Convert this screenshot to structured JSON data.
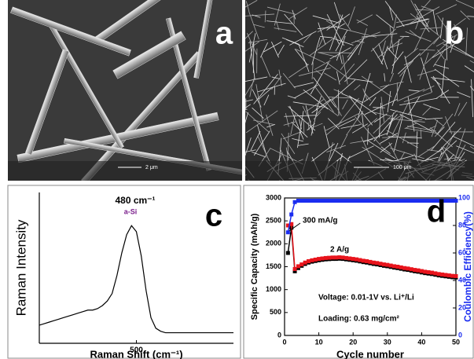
{
  "panels": [
    {
      "label": "a",
      "scale_bar": "2 μm"
    },
    {
      "label": "b",
      "scale_bar": "100 μm"
    }
  ],
  "chart_data": [
    {
      "type": "line",
      "panel_label": "c",
      "xlabel": "Raman Shift (cm⁻¹)",
      "ylabel": "Raman Intensity",
      "annotations": [
        {
          "text": "480 cm⁻¹"
        },
        {
          "text": "a-Si",
          "color": "#7a1f8c"
        }
      ],
      "xlim": [
        100,
        900
      ],
      "xticks": [
        500
      ],
      "ylim": [
        0,
        100
      ],
      "x": [
        100,
        120,
        140,
        160,
        180,
        200,
        220,
        240,
        260,
        280,
        300,
        320,
        340,
        360,
        380,
        400,
        420,
        440,
        460,
        480,
        500,
        520,
        540,
        560,
        580,
        600,
        620,
        640,
        660,
        680,
        700,
        720,
        740,
        760,
        780,
        800,
        820,
        840,
        860,
        880,
        900
      ],
      "series": [
        {
          "color": "#000000",
          "values": [
            12,
            13,
            14,
            15,
            16,
            17,
            18,
            19,
            20,
            21,
            22,
            22,
            23,
            25,
            28,
            33,
            45,
            60,
            72,
            78,
            74,
            58,
            35,
            17,
            10,
            8,
            7,
            7,
            7,
            7,
            7,
            7,
            7,
            7,
            7,
            7,
            7,
            7,
            7,
            7,
            7
          ]
        }
      ]
    },
    {
      "type": "line",
      "panel_label": "d",
      "xlabel": "Cycle number",
      "ylabel": "Specific Capacity (mAh/g)",
      "y2label": "Coulombic Efficiency(%)",
      "y2color": "#1a2cf0",
      "annotations": [
        {
          "text": "300 mA/g"
        },
        {
          "text": "2 A/g"
        },
        {
          "text": "Voltage: 0.01-1V vs. Li⁺/Li"
        },
        {
          "text": "Loading: 0.63 mg/cm²"
        }
      ],
      "xlim": [
        0,
        50
      ],
      "xticks": [
        0,
        10,
        20,
        30,
        40,
        50
      ],
      "ylim": [
        0,
        3000
      ],
      "yticks": [
        0,
        500,
        1000,
        1500,
        2000,
        2500,
        3000
      ],
      "y2lim": [
        0,
        100
      ],
      "y2ticks": [
        0,
        20,
        40,
        60,
        80,
        100
      ],
      "x": [
        1,
        2,
        3,
        4,
        5,
        6,
        7,
        8,
        9,
        10,
        11,
        12,
        13,
        14,
        15,
        16,
        17,
        18,
        19,
        20,
        21,
        22,
        23,
        24,
        25,
        26,
        27,
        28,
        29,
        30,
        31,
        32,
        33,
        34,
        35,
        36,
        37,
        38,
        39,
        40,
        41,
        42,
        43,
        44,
        45,
        46,
        47,
        48,
        49,
        50
      ],
      "series": [
        {
          "color": "#000000",
          "values": [
            1800,
            2350,
            1400,
            1470,
            1520,
            1560,
            1590,
            1610,
            1625,
            1640,
            1650,
            1660,
            1665,
            1670,
            1670,
            1675,
            1670,
            1660,
            1650,
            1640,
            1630,
            1615,
            1600,
            1590,
            1575,
            1560,
            1550,
            1535,
            1520,
            1510,
            1495,
            1480,
            1470,
            1455,
            1440,
            1430,
            1415,
            1400,
            1390,
            1375,
            1360,
            1350,
            1340,
            1325,
            1310,
            1300,
            1290,
            1280,
            1270,
            1265
          ]
        },
        {
          "color": "#e8141c",
          "values": [
            2400,
            2430,
            1450,
            1510,
            1550,
            1590,
            1620,
            1640,
            1655,
            1670,
            1680,
            1690,
            1695,
            1700,
            1700,
            1705,
            1700,
            1690,
            1680,
            1670,
            1660,
            1645,
            1630,
            1620,
            1605,
            1590,
            1580,
            1565,
            1550,
            1540,
            1525,
            1510,
            1500,
            1485,
            1470,
            1460,
            1445,
            1430,
            1420,
            1405,
            1390,
            1380,
            1370,
            1355,
            1340,
            1330,
            1320,
            1310,
            1300,
            1295
          ]
        },
        {
          "color": "#1a2cf0",
          "axis": "y2",
          "values": [
            75,
            88,
            97,
            98,
            98,
            98,
            98,
            98,
            98,
            98,
            98,
            98,
            98,
            98,
            98,
            98,
            98,
            98,
            98,
            98,
            98,
            98,
            98,
            98,
            98,
            98,
            98,
            98,
            98,
            98,
            98,
            98,
            98,
            98,
            98,
            98,
            98,
            98,
            98,
            98,
            98,
            98,
            98,
            98,
            98,
            98,
            98,
            98,
            98,
            98
          ]
        }
      ]
    }
  ]
}
